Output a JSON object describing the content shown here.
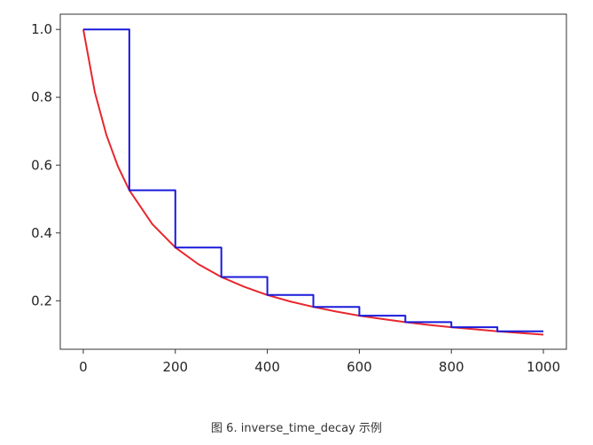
{
  "caption": "图 6. inverse_time_decay 示例",
  "chart_data": {
    "type": "line",
    "title": "",
    "xlabel": "",
    "ylabel": "",
    "xlim": [
      -50,
      1050
    ],
    "ylim": [
      0.057,
      1.045
    ],
    "x_ticks": [
      0,
      200,
      400,
      600,
      800,
      1000
    ],
    "x_tick_labels": [
      "0",
      "200",
      "400",
      "600",
      "800",
      "1000"
    ],
    "y_ticks": [
      0.2,
      0.4,
      0.6,
      0.8,
      1.0
    ],
    "y_tick_labels": [
      "0.2",
      "0.4",
      "0.6",
      "0.8",
      "1.0"
    ],
    "grid": false,
    "legend": "none",
    "series": [
      {
        "color": "#e8262d",
        "style": "smooth",
        "x": [
          0,
          25,
          50,
          75,
          100,
          150,
          200,
          250,
          300,
          350,
          400,
          450,
          500,
          550,
          600,
          650,
          700,
          750,
          800,
          850,
          900,
          950,
          1000
        ],
        "values": [
          1.0,
          0.816,
          0.69,
          0.597,
          0.526,
          0.426,
          0.357,
          0.308,
          0.27,
          0.241,
          0.217,
          0.198,
          0.182,
          0.168,
          0.156,
          0.146,
          0.137,
          0.129,
          0.122,
          0.116,
          0.11,
          0.105,
          0.1
        ]
      },
      {
        "color": "#1a1adb",
        "style": "step",
        "x": [
          0,
          100,
          100,
          200,
          200,
          300,
          300,
          400,
          400,
          500,
          500,
          600,
          600,
          700,
          700,
          800,
          800,
          900,
          900,
          1000
        ],
        "values": [
          1.0,
          1.0,
          0.526,
          0.526,
          0.357,
          0.357,
          0.27,
          0.27,
          0.217,
          0.217,
          0.182,
          0.182,
          0.156,
          0.156,
          0.137,
          0.137,
          0.122,
          0.122,
          0.11,
          0.11
        ]
      }
    ]
  }
}
